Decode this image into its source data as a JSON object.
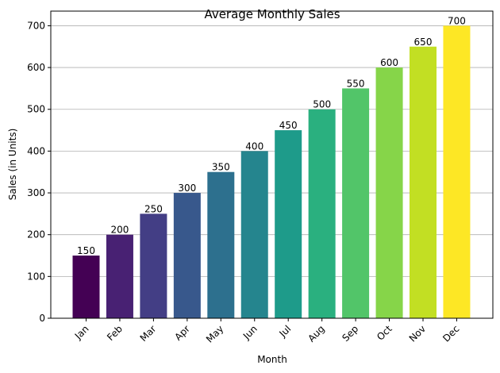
{
  "chart_data": {
    "type": "bar",
    "title": "Average Monthly Sales",
    "xlabel": "Month",
    "ylabel": "Sales (in Units)",
    "categories": [
      "Jan",
      "Feb",
      "Mar",
      "Apr",
      "May",
      "Jun",
      "Jul",
      "Aug",
      "Sep",
      "Oct",
      "Nov",
      "Dec"
    ],
    "values": [
      150,
      200,
      250,
      300,
      350,
      400,
      450,
      500,
      550,
      600,
      650,
      700
    ],
    "ylim": [
      0,
      735
    ],
    "yticks": [
      0,
      100,
      200,
      300,
      400,
      500,
      600,
      700
    ],
    "grid": "y-axis major gridlines",
    "x_tick_rotation_deg": 45,
    "colors": [
      "#440154",
      "#482173",
      "#433e85",
      "#38588c",
      "#2d708e",
      "#25858e",
      "#1e9b8a",
      "#2ab07f",
      "#52c569",
      "#86d549",
      "#c2df23",
      "#fde725"
    ],
    "grid_color": "#b0b0b0"
  }
}
